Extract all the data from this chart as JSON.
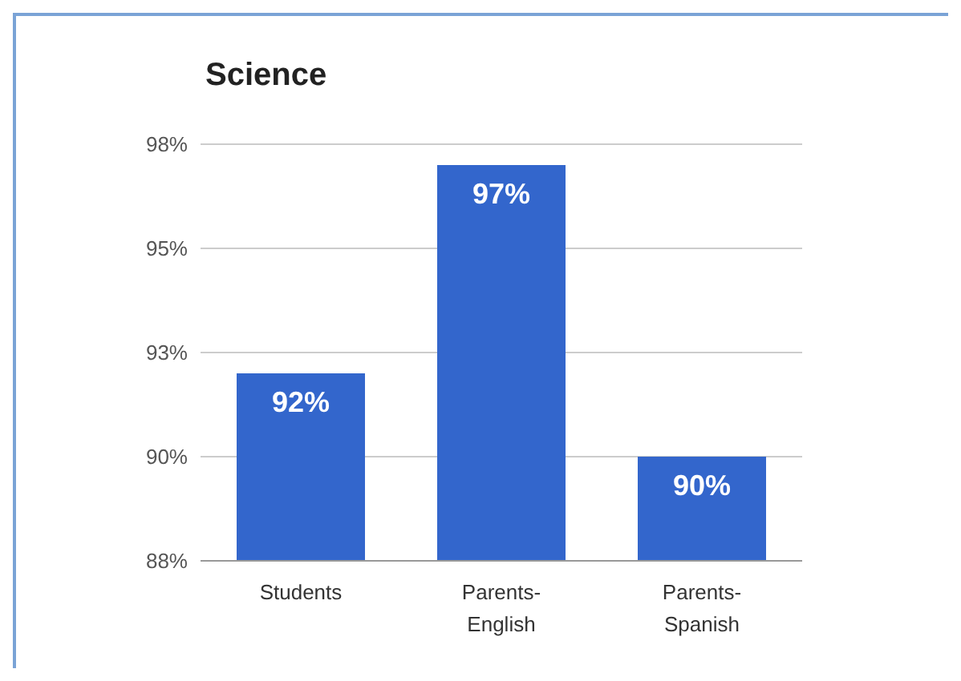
{
  "chart_data": {
    "type": "bar",
    "title": "Science",
    "categories": [
      "Students",
      "Parents-English",
      "Parents-Spanish"
    ],
    "values": [
      92,
      97,
      90
    ],
    "color": "#3366cc",
    "value_labels": [
      "92%",
      "97%",
      "90%"
    ],
    "ylim": [
      87.5,
      97.5
    ],
    "yticks": [
      {
        "value": 87.5,
        "label": "88%"
      },
      {
        "value": 90,
        "label": "90%"
      },
      {
        "value": 92.5,
        "label": "93%"
      },
      {
        "value": 95,
        "label": "95%"
      },
      {
        "value": 97.5,
        "label": "98%"
      }
    ],
    "grid": "y",
    "legend": false
  }
}
